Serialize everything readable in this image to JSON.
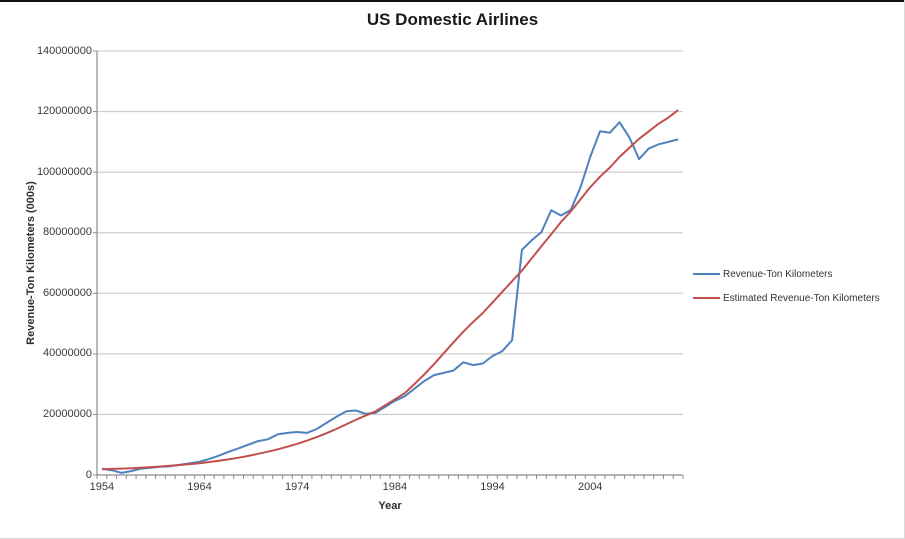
{
  "chart": {
    "title": "US Domestic Airlines",
    "x_axis_title": "Year",
    "y_axis_title": "Revenue-Ton Kilometers (000s)"
  },
  "colors": {
    "actual_line": "#4F81BD",
    "estimated_line": "#C0504D",
    "gridline": "#C3C3C3",
    "axis": "#8C8C8C",
    "tick_text": "#3a3a3a"
  },
  "chart_data": {
    "type": "line",
    "title": "US Domestic Airlines",
    "xlabel": "Year",
    "ylabel": "Revenue-Ton Kilometers (000s)",
    "ylim": [
      0,
      140000000
    ],
    "y_tick_interval": 20000000,
    "y_tick_labels": [
      "0",
      "20000000",
      "40000000",
      "60000000",
      "80000000",
      "100000000",
      "120000000",
      "140000000"
    ],
    "x_tick_labels": [
      "1954",
      "1964",
      "1974",
      "1984",
      "1994",
      "2004"
    ],
    "grid": "horizontal",
    "legend_position": "right",
    "x": [
      1954,
      1955,
      1956,
      1957,
      1958,
      1959,
      1960,
      1961,
      1962,
      1963,
      1964,
      1965,
      1966,
      1967,
      1968,
      1969,
      1970,
      1971,
      1972,
      1973,
      1974,
      1975,
      1976,
      1977,
      1978,
      1979,
      1980,
      1981,
      1982,
      1983,
      1984,
      1985,
      1986,
      1987,
      1988,
      1989,
      1990,
      1991,
      1992,
      1993,
      1994,
      1995,
      1996,
      1997,
      1998,
      1999,
      2000,
      2001,
      2002,
      2003,
      2004,
      2005,
      2006,
      2007,
      2008,
      2009,
      2010,
      2011,
      2012,
      2013
    ],
    "series": [
      {
        "name": "Revenue-Ton Kilometers",
        "color": "#4F81BD",
        "values": [
          2000000,
          1600000,
          700000,
          1300000,
          2100000,
          2400000,
          2700000,
          2900000,
          3400000,
          3900000,
          4400000,
          5300000,
          6400000,
          7700000,
          8800000,
          10000000,
          11200000,
          11800000,
          13400000,
          13900000,
          14200000,
          13900000,
          15200000,
          17200000,
          19200000,
          21000000,
          21300000,
          20200000,
          20500000,
          22500000,
          24500000,
          26000000,
          28500000,
          31000000,
          33000000,
          33700000,
          34500000,
          37200000,
          36300000,
          36800000,
          39300000,
          40900000,
          44500000,
          74300000,
          77500000,
          80200000,
          87400000,
          85700000,
          87500000,
          95000000,
          105000000,
          113500000,
          113000000,
          116500000,
          111500000,
          104300000,
          107800000,
          109200000,
          110000000,
          110800000
        ]
      },
      {
        "name": "Estimated Revenue-Ton Kilometers",
        "color": "#C0504D",
        "values": [
          1900000,
          2000000,
          2100000,
          2250000,
          2400000,
          2600000,
          2800000,
          3050000,
          3300000,
          3600000,
          3900000,
          4300000,
          4700000,
          5200000,
          5700000,
          6300000,
          7000000,
          7700000,
          8500000,
          9350000,
          10300000,
          11350000,
          12500000,
          13800000,
          15200000,
          16700000,
          18200000,
          19600000,
          21000000,
          23000000,
          25000000,
          27000000,
          30000000,
          33200000,
          36600000,
          40200000,
          43800000,
          47300000,
          50500000,
          53500000,
          57000000,
          60500000,
          64000000,
          67500000,
          71500000,
          75500000,
          79500000,
          83500000,
          87000000,
          91000000,
          95000000,
          98500000,
          101500000,
          105000000,
          108000000,
          111000000,
          113500000,
          116000000,
          118000000,
          120500000
        ]
      }
    ]
  }
}
